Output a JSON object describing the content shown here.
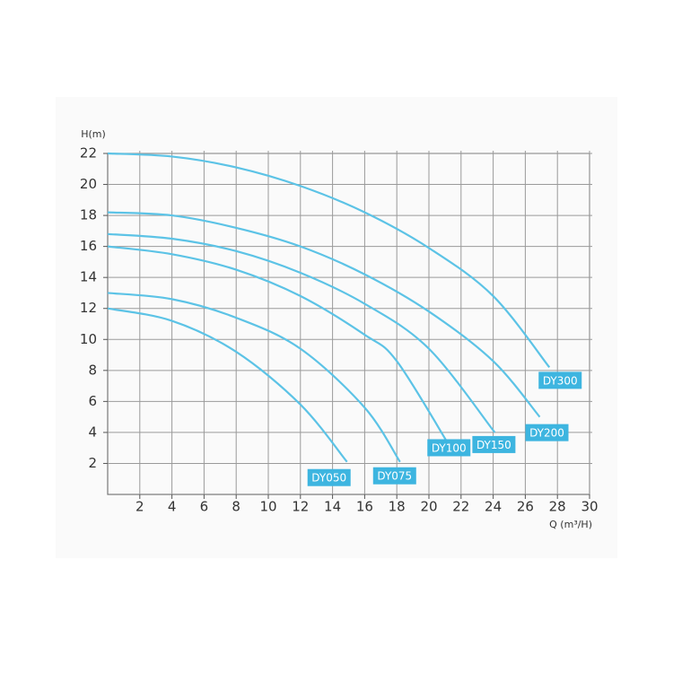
{
  "chart_data": {
    "type": "line",
    "y_label": "H(m)",
    "x_label": "Q (m³/H)",
    "xlim": [
      0,
      30
    ],
    "ylim": [
      0,
      22
    ],
    "xticks": [
      2,
      4,
      6,
      8,
      10,
      12,
      14,
      16,
      18,
      20,
      22,
      24,
      26,
      28,
      30
    ],
    "yticks": [
      2,
      4,
      6,
      8,
      10,
      12,
      14,
      16,
      18,
      20,
      22
    ],
    "grid": true,
    "series": [
      {
        "name": "DY050",
        "color": "#5cc3e6",
        "x": [
          0,
          4,
          8,
          12,
          14.9
        ],
        "values": [
          12,
          11.2,
          9.2,
          5.8,
          2.1
        ]
      },
      {
        "name": "DY075",
        "color": "#5cc3e6",
        "x": [
          0,
          4,
          8,
          12,
          16,
          18.2
        ],
        "values": [
          13,
          12.6,
          11.4,
          9.4,
          5.6,
          2.1
        ]
      },
      {
        "name": "DY100",
        "color": "#5cc3e6",
        "x": [
          0,
          4,
          8,
          12,
          16,
          18,
          21.3
        ],
        "values": [
          16,
          15.5,
          14.5,
          12.8,
          10.3,
          8.6,
          3.1
        ]
      },
      {
        "name": "DY150",
        "color": "#5cc3e6",
        "x": [
          0,
          4,
          8,
          12,
          16,
          20,
          24.1
        ],
        "values": [
          16.8,
          16.5,
          15.7,
          14.3,
          12.3,
          9.4,
          4
        ]
      },
      {
        "name": "DY200",
        "color": "#5cc3e6",
        "x": [
          0,
          4,
          8,
          12,
          16,
          20,
          24,
          26.9
        ],
        "values": [
          18.2,
          18,
          17.2,
          16,
          14.2,
          11.8,
          8.6,
          5
        ]
      },
      {
        "name": "DY300",
        "color": "#5cc3e6",
        "x": [
          0,
          4,
          8,
          12,
          16,
          20,
          24,
          27.5
        ],
        "values": [
          22,
          21.8,
          21.1,
          19.9,
          18.2,
          15.9,
          12.8,
          8.2
        ]
      }
    ]
  }
}
